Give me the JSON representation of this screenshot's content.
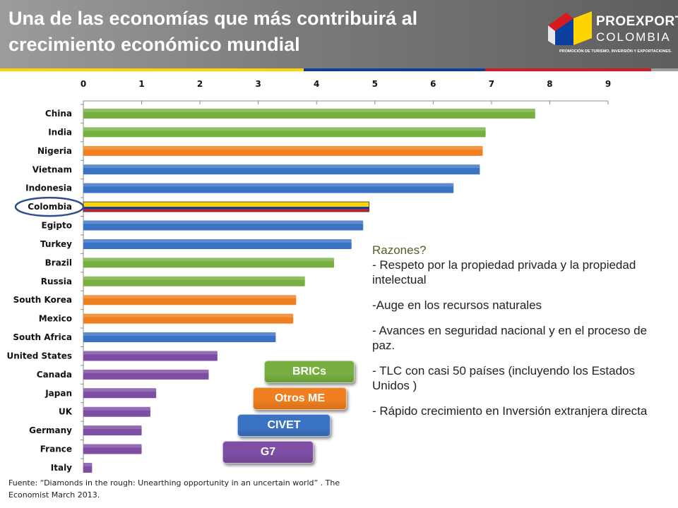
{
  "header": {
    "title": "Una de las economías que más contribuirá al crecimiento económico mundial",
    "stripe_colors": [
      "#ffd400",
      "#0a3fa0",
      "#d71920",
      "#9aa0a6"
    ]
  },
  "logo": {
    "name_line1": "PROEXPORT",
    "name_line2": "COLOMBIA",
    "tagline": "PROMOCIÓN DE TURISMO, INVERSIÓN Y EXPORTACIONES."
  },
  "chart_data": {
    "type": "bar",
    "orientation": "horizontal",
    "title": "",
    "xlabel": "",
    "ylabel": "",
    "xlim": [
      0,
      9
    ],
    "x_ticks": [
      "0",
      "1",
      "2",
      "3",
      "4",
      "5",
      "6",
      "7",
      "8",
      "9"
    ],
    "x_axis_position": "top",
    "grid": false,
    "categories": [
      "China",
      "India",
      "Nigeria",
      "Vietnam",
      "Indonesia",
      "Colombia",
      "Egipto",
      "Turkey",
      "Brazil",
      "Russia",
      "South Korea",
      "Mexico",
      "South Africa",
      "United States",
      "Canada",
      "Japan",
      "UK",
      "Germany",
      "France",
      "Italy"
    ],
    "values": [
      7.75,
      6.9,
      6.85,
      6.8,
      6.35,
      4.9,
      4.8,
      4.6,
      4.3,
      3.8,
      3.65,
      3.6,
      3.3,
      2.3,
      2.15,
      1.25,
      1.15,
      1.0,
      1.0,
      0.15
    ],
    "groups": [
      "BRICs",
      "BRICs",
      "Otros ME",
      "CIVET",
      "CIVET",
      "Colombia",
      "CIVET",
      "CIVET",
      "BRICs",
      "BRICs",
      "Otros ME",
      "Otros ME",
      "CIVET",
      "G7",
      "G7",
      "G7",
      "G7",
      "G7",
      "G7",
      "G7"
    ],
    "highlight": "Colombia",
    "legend": [
      {
        "label": "BRICs",
        "color": "#77b041"
      },
      {
        "label": "Otros ME",
        "color": "#f07f1f"
      },
      {
        "label": "CIVET",
        "color": "#3b73c4"
      },
      {
        "label": "G7",
        "color": "#7d4ea4"
      }
    ],
    "colombia_flag_colors": [
      "#ffd400",
      "#0a3fa0",
      "#d71920"
    ],
    "highlight_ring_color": "#2f4f8f"
  },
  "reasons": {
    "heading": "Razones?",
    "items": [
      "- Respeto por la propiedad privada y la propiedad intelectual",
      "-Auge en los recursos naturales",
      "- Avances en seguridad nacional y en el proceso de paz.",
      "- TLC con casi  50 países (incluyendo los Estados Unidos )",
      "- Rápido crecimiento en Inversión extranjera directa"
    ]
  },
  "source": "Fuente: “Diamonds in the rough: Unearthing opportunity in an uncertain world” . The Economist March 2013."
}
